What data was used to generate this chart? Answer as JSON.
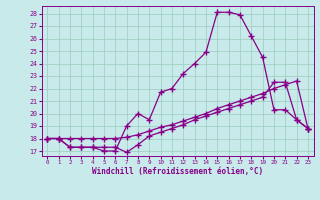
{
  "xlabel": "Windchill (Refroidissement éolien,°C)",
  "bg_color": "#c8eaea",
  "line_color": "#880088",
  "grid_color": "#99ccbb",
  "xlim_min": -0.5,
  "xlim_max": 23.5,
  "ylim_min": 16.6,
  "ylim_max": 28.6,
  "xticks": [
    0,
    1,
    2,
    3,
    4,
    5,
    6,
    7,
    8,
    9,
    10,
    11,
    12,
    13,
    14,
    15,
    16,
    17,
    18,
    19,
    20,
    21,
    22,
    23
  ],
  "yticks": [
    17,
    18,
    19,
    20,
    21,
    22,
    23,
    24,
    25,
    26,
    27,
    28
  ],
  "line1_x": [
    0,
    1,
    2,
    3,
    4,
    5,
    6,
    7,
    8,
    9,
    10,
    11,
    12,
    13,
    14,
    15,
    16,
    17,
    18,
    19,
    20,
    21,
    22,
    23
  ],
  "line1_y": [
    18.0,
    18.0,
    17.3,
    17.3,
    17.3,
    17.3,
    17.3,
    16.9,
    17.5,
    18.2,
    18.5,
    18.8,
    19.1,
    19.5,
    19.8,
    20.1,
    20.4,
    20.7,
    21.0,
    21.3,
    22.5,
    22.5,
    19.5,
    18.8
  ],
  "line2_x": [
    0,
    1,
    2,
    3,
    4,
    5,
    6,
    7,
    8,
    9,
    10,
    11,
    12,
    13,
    14,
    15,
    16,
    17,
    18,
    19,
    20,
    21,
    22,
    23
  ],
  "line2_y": [
    18.0,
    18.0,
    18.0,
    18.0,
    18.0,
    18.0,
    18.0,
    18.1,
    18.3,
    18.6,
    18.9,
    19.1,
    19.4,
    19.7,
    20.0,
    20.4,
    20.7,
    21.0,
    21.3,
    21.6,
    22.0,
    22.3,
    22.6,
    18.8
  ],
  "line3_x": [
    0,
    1,
    2,
    3,
    4,
    5,
    6,
    7,
    8,
    9,
    10,
    11,
    12,
    13,
    14,
    15,
    16,
    17,
    18,
    19,
    20,
    21,
    22,
    23
  ],
  "line3_y": [
    18.0,
    18.0,
    17.3,
    17.3,
    17.3,
    17.0,
    17.0,
    19.0,
    20.0,
    19.5,
    21.7,
    22.0,
    23.2,
    24.0,
    24.9,
    28.1,
    28.1,
    27.9,
    26.2,
    24.5,
    20.3,
    20.3,
    19.5,
    18.8
  ]
}
